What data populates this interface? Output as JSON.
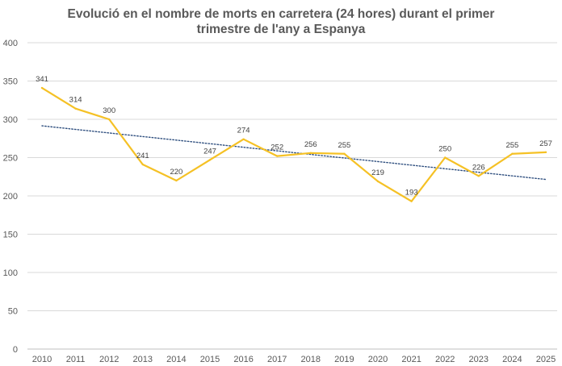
{
  "chart_data": {
    "type": "line",
    "title_line1": "Evolució en el nombre de morts en carretera (24 hores) durant el primer",
    "title_line2": "trimestre de l'any a Espanya",
    "x": [
      "2010",
      "2011",
      "2012",
      "2013",
      "2014",
      "2015",
      "2016",
      "2017",
      "2018",
      "2019",
      "2020",
      "2021",
      "2022",
      "2023",
      "2024",
      "2025"
    ],
    "series": [
      {
        "values": [
          341,
          314,
          300,
          241,
          220,
          247,
          274,
          252,
          256,
          255,
          219,
          193,
          250,
          226,
          255,
          257
        ],
        "color": "#f5c125"
      }
    ],
    "trendline": {
      "type": "linear",
      "style": "dotted",
      "color": "#2f4f7f",
      "start": 291.5,
      "end": 221.5
    },
    "ylim": [
      0,
      400
    ],
    "yticks": [
      0,
      50,
      100,
      150,
      200,
      250,
      300,
      350,
      400
    ],
    "grid": true,
    "legend": "none"
  }
}
